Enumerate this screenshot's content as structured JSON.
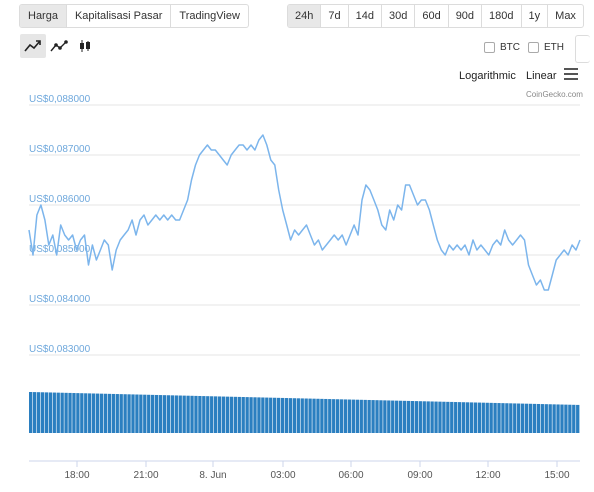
{
  "view_tabs": [
    {
      "label": "Harga",
      "active": true
    },
    {
      "label": "Kapitalisasi Pasar",
      "active": false
    },
    {
      "label": "TradingView",
      "active": false
    }
  ],
  "range_tabs": [
    {
      "label": "24h",
      "active": true
    },
    {
      "label": "7d",
      "active": false
    },
    {
      "label": "14d",
      "active": false
    },
    {
      "label": "30d",
      "active": false
    },
    {
      "label": "60d",
      "active": false
    },
    {
      "label": "90d",
      "active": false
    },
    {
      "label": "180d",
      "active": false
    },
    {
      "label": "1y",
      "active": false
    },
    {
      "label": "Max",
      "active": false
    }
  ],
  "chart_types": [
    {
      "icon": "line-chart-icon",
      "active": true
    },
    {
      "icon": "line-dots-chart-icon",
      "active": false
    },
    {
      "icon": "candlestick-chart-icon",
      "active": false
    }
  ],
  "compare": {
    "btc": "BTC",
    "eth": "ETH",
    "btc_checked": false,
    "eth_checked": false
  },
  "scale": {
    "log_label": "Logarithmic",
    "linear_label": "Linear",
    "selected": "Linear"
  },
  "credit": "CoinGecko.com",
  "colors": {
    "line": "#7cb5ec",
    "volume": "#2b7fc0",
    "grid": "#e6e6e6",
    "axis_label": "#6fa8dc"
  },
  "chart_data": {
    "type": "line",
    "xlabel": "",
    "ylabel": "",
    "ylim": [
      0.0828,
      0.0882
    ],
    "yticks": [
      0.083,
      0.084,
      0.085,
      0.086,
      0.087,
      0.088
    ],
    "ytick_labels": [
      "US$0,083000",
      "US$0,084000",
      "US$0,085000",
      "US$0,086000",
      "US$0,087000",
      "US$0,088000"
    ],
    "xlim_hours": [
      16.05,
      16.1
    ],
    "xticks": [
      18,
      21,
      24,
      27,
      30,
      33,
      36,
      39
    ],
    "xtick_labels": [
      "18:00",
      "21:00",
      "8. Jun",
      "03:00",
      "06:00",
      "09:00",
      "12:00",
      "15:00"
    ],
    "x_start": "16:05",
    "x_end": "16:10",
    "grid": true,
    "legend": "none",
    "series": [
      {
        "points": [
          [
            0.0854,
            0.0849,
            0.0857,
            0.0859,
            0.0856,
            0.0851,
            0.0853,
            0.0849,
            0.0855,
            0.0853,
            0.0852,
            0.0853,
            0.085,
            0.0852,
            0.0853,
            0.0847,
            0.0851,
            0.0848,
            0.085,
            0.0852,
            0.0851,
            0.0846,
            0.085,
            0.0852,
            0.0853,
            0.0854,
            0.0856,
            0.0853,
            0.0856,
            0.0857,
            0.0855,
            0.0856,
            0.0857,
            0.0856,
            0.0857,
            0.0856,
            0.0857,
            0.0856,
            0.0856,
            0.0858,
            0.086,
            0.0864,
            0.0867,
            0.0869,
            0.087,
            0.0871,
            0.087,
            0.087,
            0.0869,
            0.0868,
            0.0867,
            0.0869,
            0.087,
            0.0871,
            0.0871,
            0.087,
            0.0871,
            0.087,
            0.0872,
            0.0873,
            0.0871,
            0.0868,
            0.0867,
            0.0862,
            0.0858,
            0.0855,
            0.0852,
            0.0854,
            0.0853,
            0.0854,
            0.0855,
            0.0853,
            0.0851,
            0.0852,
            0.085,
            0.0851,
            0.0852,
            0.0853,
            0.0852,
            0.0853,
            0.0851,
            0.0853,
            0.0855,
            0.0853,
            0.086,
            0.0863,
            0.0862,
            0.086,
            0.0858,
            0.0855,
            0.0854,
            0.0858,
            0.0856,
            0.0859,
            0.0858,
            0.0863,
            0.0863,
            0.0861,
            0.0859,
            0.086,
            0.086,
            0.0858,
            0.0855,
            0.0852,
            0.085,
            0.0849,
            0.0851,
            0.085,
            0.0851,
            0.085,
            0.0851,
            0.0849,
            0.0852,
            0.085,
            0.0851,
            0.085,
            0.0849,
            0.0851,
            0.0852,
            0.0851,
            0.0854,
            0.0852,
            0.0851,
            0.0852,
            0.0853,
            0.0852,
            0.0847,
            0.0845,
            0.0843,
            0.0844,
            0.0842,
            0.0842,
            0.0845,
            0.0848,
            0.0849,
            0.085,
            0.0849,
            0.0851,
            0.085,
            0.0852
          ]
        ]
      }
    ],
    "volume_note": "",
    "volume_bar_count": 140
  }
}
